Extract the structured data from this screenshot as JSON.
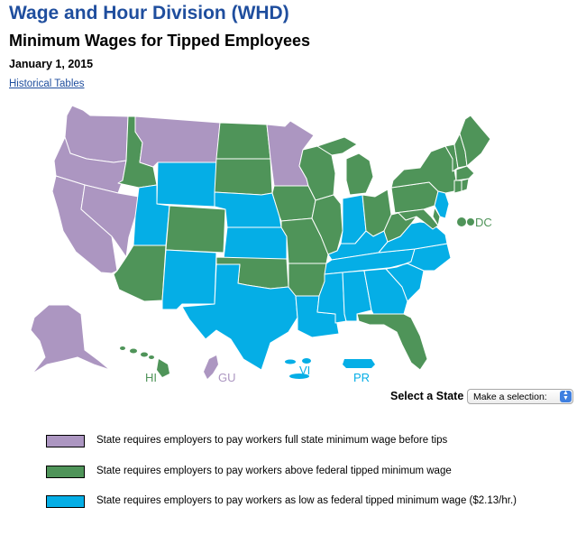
{
  "header": {
    "agency": "Wage and Hour Division (WHD)",
    "title": "Minimum Wages for Tipped Employees",
    "date": "January 1, 2015",
    "historical_link": "Historical Tables"
  },
  "colors": {
    "full_wage": "#ac96c1",
    "above_federal": "#4f9459",
    "federal": "#05aee6"
  },
  "map": {
    "categories": {
      "full_wage": [
        "WA",
        "OR",
        "CA",
        "NV",
        "MT",
        "MN",
        "AK",
        "GU"
      ],
      "above_federal": [
        "ID",
        "AZ",
        "CO",
        "ND",
        "SD",
        "IA",
        "MO",
        "AR",
        "OK",
        "WI",
        "IL",
        "MI",
        "OH",
        "WV",
        "FL",
        "HI",
        "DC",
        "PA",
        "NY",
        "VT",
        "NH",
        "ME",
        "MA",
        "CT",
        "RI",
        "DE",
        "MD"
      ],
      "federal": [
        "UT",
        "WY",
        "NM",
        "TX",
        "NE",
        "KS",
        "LA",
        "MS",
        "AL",
        "GA",
        "SC",
        "NC",
        "TN",
        "KY",
        "IN",
        "VA",
        "NJ",
        "VI",
        "PR"
      ]
    },
    "labels": {
      "dc": "DC",
      "hi": "HI",
      "gu": "GU",
      "vi": "VI",
      "pr": "PR"
    }
  },
  "selector": {
    "label": "Select a State",
    "value": "Make a selection:"
  },
  "legend": [
    {
      "text": "State requires employers to pay workers full state minimum wage before tips",
      "category": "full_wage"
    },
    {
      "text": "State requires employers to pay workers above federal tipped minimum wage",
      "category": "above_federal"
    },
    {
      "text": "State requires employers to pay workers as low as federal tipped minimum wage ($2.13/hr.)",
      "category": "federal"
    }
  ]
}
